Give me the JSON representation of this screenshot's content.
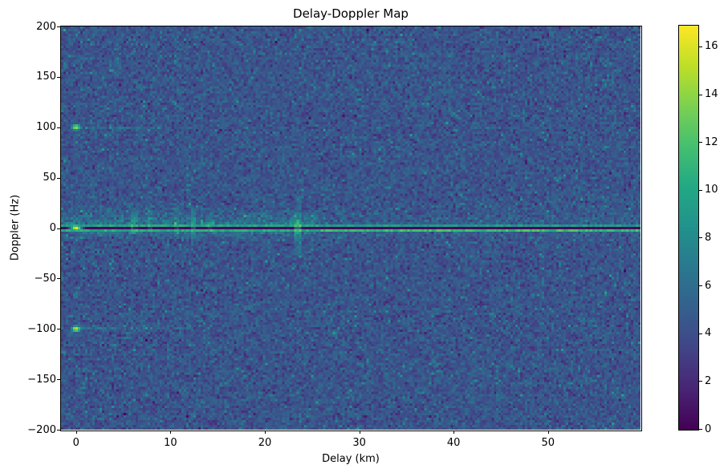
{
  "chart_data": {
    "type": "heatmap",
    "title": "Delay-Doppler Map",
    "xlabel": "Delay (km)",
    "ylabel": "Doppler (Hz)",
    "x_range_km": [
      -1.6,
      59.8
    ],
    "y_range_hz": [
      -200,
      200
    ],
    "x_ticks": [
      0,
      10,
      20,
      30,
      40,
      50
    ],
    "y_ticks": [
      200,
      150,
      100,
      50,
      0,
      -50,
      -100,
      -150,
      -200
    ],
    "grid": {
      "cols": 241,
      "rows": 169,
      "seed": 1337
    },
    "colorbar": {
      "vmin": 0,
      "vmax": 16.9,
      "ticks": [
        0,
        2,
        4,
        6,
        8,
        10,
        12,
        14,
        16
      ],
      "colormap": "viridis",
      "stops": [
        [
          0.0,
          "#440154"
        ],
        [
          0.1,
          "#482475"
        ],
        [
          0.2,
          "#414487"
        ],
        [
          0.3,
          "#355f8d"
        ],
        [
          0.4,
          "#2a788e"
        ],
        [
          0.5,
          "#21918c"
        ],
        [
          0.6,
          "#22a884"
        ],
        [
          0.7,
          "#44bf70"
        ],
        [
          0.8,
          "#7ad151"
        ],
        [
          0.9,
          "#bddf26"
        ],
        [
          1.0,
          "#fde725"
        ]
      ]
    },
    "noise": {
      "mean": 4.4,
      "sigma": 1.0,
      "speckle_prob": 0.04,
      "speckle_boost": 3.5
    },
    "features": {
      "zero_doppler_dark_line": {
        "doppler_hz": 0,
        "value": 0.5
      },
      "zero_doppler_bright_lines": [
        {
          "offset_hz": 2.4,
          "base": 7.5,
          "jitter": 2.8,
          "left_boost": 0.8
        },
        {
          "offset_hz": -2.4,
          "base": 8.0,
          "jitter": 3.0,
          "right_boost": 1.8
        }
      ],
      "zero_glow": {
        "sigma_up_hz": 9,
        "sigma_down_hz": 5,
        "amp_near": 3.0,
        "amp_far": 1.0,
        "near_far_delay_km": 26
      },
      "point_targets": [
        {
          "delay_km": 0,
          "doppler_hz": 0,
          "peak": 16.5
        },
        {
          "delay_km": 0,
          "doppler_hz": 100,
          "peak": 14.5
        },
        {
          "delay_km": 0,
          "doppler_hz": -100,
          "peak": 15.5
        }
      ],
      "ambiguity_streaks": [
        {
          "doppler_hz": 100,
          "delay_span_km": [
            0,
            13
          ],
          "amp": 2.5,
          "decay_km": 10
        },
        {
          "doppler_hz": -100,
          "delay_span_km": [
            0,
            13
          ],
          "amp": 2.5,
          "decay_km": 10
        }
      ],
      "clutter_streaks": [
        {
          "delay_km": 6.2,
          "doppler_span_hz": [
            -6,
            26
          ],
          "amp": 4.0
        },
        {
          "delay_km": 7.9,
          "doppler_span_hz": [
            -4,
            18
          ],
          "amp": 2.6
        },
        {
          "delay_km": 10.7,
          "doppler_span_hz": [
            -8,
            22
          ],
          "amp": 3.2
        },
        {
          "delay_km": 12.4,
          "doppler_span_hz": [
            -14,
            22
          ],
          "amp": 3.8
        },
        {
          "delay_km": 14.2,
          "doppler_span_hz": [
            -4,
            14
          ],
          "amp": 2.2
        },
        {
          "delay_km": 20.5,
          "doppler_span_hz": [
            -24,
            -14
          ],
          "amp": 2.6
        },
        {
          "delay_km": 23.5,
          "doppler_span_hz": [
            -28,
            32
          ],
          "amp": 5.5
        }
      ]
    }
  }
}
